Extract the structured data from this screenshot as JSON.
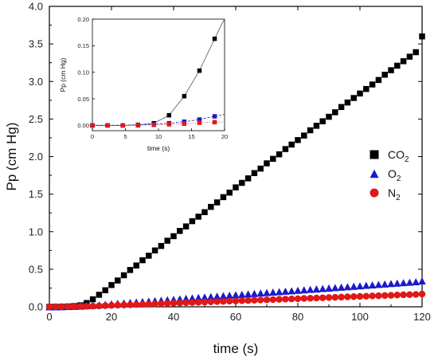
{
  "chart_data": [
    {
      "type": "scatter",
      "role": "main",
      "xlabel": "time (s)",
      "ylabel": "Pp (cm Hg)",
      "xlim": [
        0,
        120
      ],
      "ylim": [
        0,
        4
      ],
      "xticks": [
        "0",
        "20",
        "40",
        "60",
        "80",
        "100",
        "120"
      ],
      "yticks": [
        "0.0",
        "0.5",
        "1.0",
        "1.5",
        "2.0",
        "2.5",
        "3.0",
        "3.5",
        "4.0"
      ],
      "legend_position": "right",
      "series": [
        {
          "name": "CO2",
          "name_base": "CO",
          "name_sub": "2",
          "marker": "square",
          "color": "#000000",
          "x": [
            0,
            2,
            4,
            6,
            8,
            10,
            12,
            14,
            16,
            18,
            20,
            22,
            24,
            26,
            28,
            30,
            32,
            34,
            36,
            38,
            40,
            42,
            44,
            46,
            48,
            50,
            52,
            54,
            56,
            58,
            60,
            62,
            64,
            66,
            68,
            70,
            72,
            74,
            76,
            78,
            80,
            82,
            84,
            86,
            88,
            90,
            92,
            94,
            96,
            98,
            100,
            102,
            104,
            106,
            108,
            110,
            112,
            114,
            116,
            118,
            120
          ],
          "values": [
            0.0,
            0.0,
            0.0,
            0.005,
            0.01,
            0.02,
            0.05,
            0.1,
            0.16,
            0.22,
            0.29,
            0.35,
            0.42,
            0.49,
            0.55,
            0.62,
            0.68,
            0.75,
            0.81,
            0.88,
            0.94,
            1.01,
            1.07,
            1.14,
            1.2,
            1.26,
            1.33,
            1.39,
            1.46,
            1.52,
            1.59,
            1.65,
            1.71,
            1.78,
            1.84,
            1.91,
            1.97,
            2.03,
            2.1,
            2.16,
            2.22,
            2.28,
            2.35,
            2.41,
            2.47,
            2.53,
            2.59,
            2.66,
            2.72,
            2.78,
            2.84,
            2.9,
            2.96,
            3.02,
            3.09,
            3.15,
            3.21,
            3.27,
            3.33,
            3.39,
            3.6
          ]
        },
        {
          "name": "O2",
          "name_base": "O",
          "name_sub": "2",
          "marker": "triangle",
          "color": "#1a1acc",
          "x": [
            0,
            2,
            4,
            6,
            8,
            10,
            12,
            14,
            16,
            18,
            20,
            22,
            24,
            26,
            28,
            30,
            32,
            34,
            36,
            38,
            40,
            42,
            44,
            46,
            48,
            50,
            52,
            54,
            56,
            58,
            60,
            62,
            64,
            66,
            68,
            70,
            72,
            74,
            76,
            78,
            80,
            82,
            84,
            86,
            88,
            90,
            92,
            94,
            96,
            98,
            100,
            102,
            104,
            106,
            108,
            110,
            112,
            114,
            116,
            118,
            120
          ],
          "values": [
            0.0,
            0.0,
            0.002,
            0.004,
            0.007,
            0.01,
            0.015,
            0.02,
            0.027,
            0.033,
            0.04,
            0.046,
            0.052,
            0.058,
            0.064,
            0.07,
            0.076,
            0.082,
            0.088,
            0.094,
            0.1,
            0.106,
            0.112,
            0.118,
            0.124,
            0.13,
            0.136,
            0.142,
            0.148,
            0.154,
            0.16,
            0.166,
            0.172,
            0.178,
            0.184,
            0.19,
            0.196,
            0.202,
            0.208,
            0.214,
            0.22,
            0.226,
            0.232,
            0.238,
            0.244,
            0.25,
            0.256,
            0.262,
            0.268,
            0.274,
            0.28,
            0.286,
            0.292,
            0.298,
            0.304,
            0.31,
            0.316,
            0.322,
            0.328,
            0.334,
            0.345
          ]
        },
        {
          "name": "N2",
          "name_base": "N",
          "name_sub": "2",
          "marker": "circle",
          "color": "#e01818",
          "x": [
            0,
            2,
            4,
            6,
            8,
            10,
            12,
            14,
            16,
            18,
            20,
            22,
            24,
            26,
            28,
            30,
            32,
            34,
            36,
            38,
            40,
            42,
            44,
            46,
            48,
            50,
            52,
            54,
            56,
            58,
            60,
            62,
            64,
            66,
            68,
            70,
            72,
            74,
            76,
            78,
            80,
            82,
            84,
            86,
            88,
            90,
            92,
            94,
            96,
            98,
            100,
            102,
            104,
            106,
            108,
            110,
            112,
            114,
            116,
            118,
            120
          ],
          "values": [
            0.0,
            0.0,
            0.001,
            0.002,
            0.003,
            0.005,
            0.007,
            0.009,
            0.012,
            0.015,
            0.018,
            0.021,
            0.024,
            0.027,
            0.03,
            0.033,
            0.036,
            0.039,
            0.042,
            0.045,
            0.048,
            0.051,
            0.054,
            0.057,
            0.06,
            0.063,
            0.066,
            0.069,
            0.072,
            0.075,
            0.078,
            0.081,
            0.084,
            0.087,
            0.09,
            0.093,
            0.096,
            0.099,
            0.102,
            0.105,
            0.108,
            0.111,
            0.114,
            0.117,
            0.12,
            0.123,
            0.126,
            0.129,
            0.132,
            0.135,
            0.138,
            0.141,
            0.144,
            0.147,
            0.15,
            0.153,
            0.156,
            0.159,
            0.162,
            0.165,
            0.17
          ]
        }
      ]
    },
    {
      "type": "scatter",
      "role": "inset",
      "xlabel": "time (s)",
      "ylabel": "Pp (cm Hg)",
      "xlim": [
        0,
        20
      ],
      "ylim": [
        -0.01,
        0.2
      ],
      "xticks": [
        "0",
        "5",
        "10",
        "15",
        "20"
      ],
      "yticks": [
        "0.00",
        "0.05",
        "0.10",
        "0.15",
        "0.20"
      ],
      "series": [
        {
          "name": "CO2",
          "marker": "square",
          "color": "#000000",
          "x": [
            0,
            2.3,
            4.6,
            6.9,
            9.3,
            11.6,
            13.9,
            16.2,
            18.5
          ],
          "values": [
            0.0,
            0.0,
            0.0,
            0.001,
            0.004,
            0.019,
            0.055,
            0.103,
            0.163
          ]
        },
        {
          "name": "O2",
          "marker": "square",
          "color": "#1a1acc",
          "x": [
            0,
            2.3,
            4.6,
            6.9,
            9.3,
            11.6,
            13.9,
            16.2,
            18.5
          ],
          "values": [
            0.0,
            0.0,
            0.0,
            0.001,
            0.002,
            0.004,
            0.007,
            0.011,
            0.017
          ]
        },
        {
          "name": "N2",
          "marker": "square",
          "color": "#e01818",
          "x": [
            0,
            2.3,
            4.6,
            6.9,
            9.3,
            11.6,
            13.9,
            16.2,
            18.5
          ],
          "values": [
            0.0,
            0.0,
            0.0,
            0.0,
            0.001,
            0.002,
            0.003,
            0.005,
            0.006
          ]
        }
      ]
    }
  ]
}
